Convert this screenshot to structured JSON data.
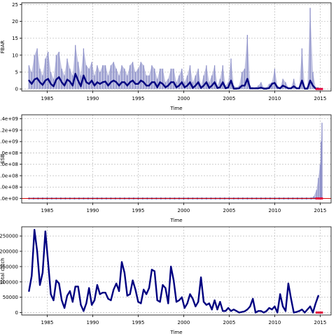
{
  "colors": {
    "band": "#8d8fc8",
    "line": "#000080",
    "projection": "#e0003a",
    "grid": "#bbbbbb",
    "zero_line": "#d40000"
  },
  "chart_data": [
    {
      "type": "area",
      "ylabel": "FBAR",
      "xlabel": "Time",
      "xlim": [
        1982.2,
        2016.2
      ],
      "ylim": [
        -0.6,
        25.5
      ],
      "x_ticks": [
        "1985",
        "1990",
        "1995",
        "2000",
        "2005",
        "2010",
        "2015"
      ],
      "y_ticks": [
        "0",
        "5",
        "10",
        "15",
        "20",
        "25"
      ],
      "grid": true,
      "series": [
        {
          "role": "upper_band",
          "x": [
            1983.0,
            1983.3,
            1983.6,
            1983.9,
            1984.2,
            1984.5,
            1984.8,
            1985.1,
            1985.4,
            1985.7,
            1986.0,
            1986.3,
            1986.6,
            1986.9,
            1987.2,
            1987.5,
            1987.8,
            1988.1,
            1988.4,
            1988.7,
            1989.0,
            1989.3,
            1989.6,
            1989.9,
            1990.2,
            1990.5,
            1990.8,
            1991.1,
            1991.4,
            1991.7,
            1992.0,
            1992.3,
            1992.6,
            1992.9,
            1993.2,
            1993.5,
            1993.8,
            1994.1,
            1994.4,
            1994.7,
            1995.0,
            1995.3,
            1995.6,
            1995.9,
            1996.2,
            1996.5,
            1996.8,
            1997.1,
            1997.4,
            1997.7,
            1998.0,
            1998.3,
            1998.6,
            1998.9,
            1999.2,
            1999.5,
            1999.8,
            2000.1,
            2000.4,
            2000.7,
            2001.0,
            2001.3,
            2001.6,
            2001.9,
            2002.2,
            2002.5,
            2002.8,
            2003.1,
            2003.4,
            2003.7,
            2004.0,
            2004.3,
            2004.6,
            2004.9,
            2005.2,
            2005.5,
            2005.8,
            2006.1,
            2006.4,
            2006.7,
            2007.0,
            2007.3,
            2007.6,
            2007.9,
            2008.2,
            2008.5,
            2008.8,
            2009.1,
            2009.4,
            2009.7,
            2010.0,
            2010.3,
            2010.6,
            2010.9,
            2011.2,
            2011.5,
            2011.8,
            2012.1,
            2012.4,
            2012.7,
            2013.0,
            2013.3,
            2013.6,
            2013.9,
            2014.2,
            2014.5,
            2014.8
          ],
          "values": [
            7,
            5,
            10,
            12,
            6,
            4,
            9,
            11,
            5,
            3,
            10,
            11,
            6,
            4,
            9,
            6,
            4,
            13,
            8,
            4,
            12,
            7,
            6,
            8,
            4,
            7,
            5,
            7,
            7,
            4,
            7,
            8,
            6,
            4,
            7,
            6,
            4,
            7,
            8,
            5,
            6,
            8,
            7,
            4,
            4,
            7,
            6,
            3,
            6,
            6,
            2,
            3,
            6,
            6,
            2,
            4,
            6,
            2,
            4,
            7,
            2,
            4,
            6,
            1,
            4,
            7,
            2,
            4,
            7,
            1,
            3,
            7,
            1,
            2,
            9,
            1,
            0.5,
            1,
            5,
            6,
            16,
            1,
            0.5,
            0.5,
            1,
            2,
            0.5,
            0.5,
            1.5,
            2,
            6,
            1,
            0.5,
            3,
            2,
            0.5,
            0.5,
            3,
            0.5,
            0.5,
            12,
            0.5,
            0.5,
            24,
            5,
            0.5,
            0.5
          ]
        },
        {
          "role": "median",
          "x": [
            1983.0,
            1983.3,
            1983.6,
            1983.9,
            1984.2,
            1984.5,
            1984.8,
            1985.1,
            1985.4,
            1985.7,
            1986.0,
            1986.3,
            1986.6,
            1986.9,
            1987.2,
            1987.5,
            1987.8,
            1988.1,
            1988.4,
            1988.7,
            1989.0,
            1989.3,
            1989.6,
            1989.9,
            1990.2,
            1990.5,
            1990.8,
            1991.1,
            1991.4,
            1991.7,
            1992.0,
            1992.3,
            1992.6,
            1992.9,
            1993.2,
            1993.5,
            1993.8,
            1994.1,
            1994.4,
            1994.7,
            1995.0,
            1995.3,
            1995.6,
            1995.9,
            1996.2,
            1996.5,
            1996.8,
            1997.1,
            1997.4,
            1997.7,
            1998.0,
            1998.3,
            1998.6,
            1998.9,
            1999.2,
            1999.5,
            1999.8,
            2000.1,
            2000.4,
            2000.7,
            2001.0,
            2001.3,
            2001.6,
            2001.9,
            2002.2,
            2002.5,
            2002.8,
            2003.1,
            2003.4,
            2003.7,
            2004.0,
            2004.3,
            2004.6,
            2004.9,
            2005.2,
            2005.5,
            2005.8,
            2006.1,
            2006.4,
            2006.7,
            2007.0,
            2007.3,
            2007.6,
            2007.9,
            2008.2,
            2008.5,
            2008.8,
            2009.1,
            2009.4,
            2009.7,
            2010.0,
            2010.3,
            2010.6,
            2010.9,
            2011.2,
            2011.5,
            2011.8,
            2012.1,
            2012.4,
            2012.7,
            2013.0,
            2013.3,
            2013.6,
            2013.9,
            2014.2,
            2014.5,
            2014.8
          ],
          "values": [
            2.5,
            1.5,
            2.8,
            3.2,
            2,
            1.2,
            2.5,
            3,
            1.5,
            0.8,
            2.8,
            3.5,
            2,
            1,
            2.8,
            2.2,
            1,
            4.5,
            2.5,
            0.8,
            4,
            2,
            1.5,
            2.5,
            1,
            2,
            1.5,
            2,
            2.2,
            1,
            2,
            2.5,
            2,
            1,
            2,
            2,
            1,
            2,
            2.5,
            1.5,
            1.5,
            2.5,
            2,
            1,
            1,
            2,
            2,
            0.5,
            2,
            1.5,
            0.5,
            1,
            2,
            2,
            0.5,
            1,
            2,
            0.5,
            1,
            2,
            0.3,
            1,
            2,
            0.3,
            1,
            2,
            0.3,
            1,
            2,
            0.3,
            0.5,
            2,
            0.2,
            0.5,
            2.5,
            0.1,
            0.1,
            0.2,
            1,
            1,
            3,
            0.2,
            0.2,
            0.2,
            0.2,
            0.4,
            0.1,
            0.1,
            0.3,
            1.5,
            1.8,
            0.4,
            0.2,
            1,
            0.6,
            0.2,
            0.2,
            0.8,
            0.2,
            0.2,
            2.5,
            0.1,
            0.1,
            2.5,
            1,
            0.1,
            0.1
          ]
        },
        {
          "role": "projection",
          "x": [
            2014.6,
            2014.8,
            2015.0,
            2015.2
          ],
          "values": [
            0,
            0,
            0,
            0
          ]
        }
      ]
    },
    {
      "type": "area",
      "ylabel": "SSB",
      "xlabel": "Time",
      "xlim": [
        1982.2,
        2016.2
      ],
      "ylim": [
        -80000000.0,
        1470000000.0
      ],
      "x_ticks": [
        "1985",
        "1990",
        "1995",
        "2000",
        "2005",
        "2010",
        "2015"
      ],
      "y_ticks": [
        ".0e+00",
        ".0e+08",
        ".0e+08",
        ".0e+08",
        ".0e+08",
        ".0e+09",
        ".2e+09",
        ".4e+09"
      ],
      "grid": true,
      "series": [
        {
          "role": "upper_band",
          "x": [
            2014.0,
            2014.3,
            2014.6,
            2014.8,
            2015.0,
            2015.1,
            2015.2
          ],
          "values": [
            0,
            40000000.0,
            150000000.0,
            360000000.0,
            600000000.0,
            1000000000.0,
            1330000000.0
          ]
        },
        {
          "role": "median",
          "x": [
            1983.0,
            2014.8
          ],
          "values": [
            0,
            0
          ]
        },
        {
          "role": "projection",
          "x": [
            2014.6,
            2014.8,
            2015.0,
            2015.2
          ],
          "values": [
            0,
            0,
            0,
            0
          ]
        }
      ]
    },
    {
      "type": "line",
      "ylabel": "total catch",
      "xlabel": "Time",
      "xlim": [
        1982.2,
        2016.2
      ],
      "ylim": [
        -8000,
        280000
      ],
      "x_ticks": [
        "1985",
        "1990",
        "1995",
        "2000",
        "2005",
        "2010",
        "2015"
      ],
      "y_ticks": [
        "0",
        "50000",
        "100000",
        "150000",
        "200000",
        "250000"
      ],
      "grid": true,
      "series": [
        {
          "role": "median",
          "x": [
            1983.0,
            1983.3,
            1983.6,
            1983.9,
            1984.2,
            1984.5,
            1984.8,
            1985.1,
            1985.4,
            1985.7,
            1986.0,
            1986.3,
            1986.6,
            1986.9,
            1987.2,
            1987.5,
            1987.8,
            1988.1,
            1988.4,
            1988.7,
            1989.0,
            1989.3,
            1989.6,
            1989.9,
            1990.2,
            1990.5,
            1990.8,
            1991.1,
            1991.4,
            1991.7,
            1992.0,
            1992.3,
            1992.6,
            1992.9,
            1993.2,
            1993.5,
            1993.8,
            1994.1,
            1994.4,
            1994.7,
            1995.0,
            1995.3,
            1995.6,
            1995.9,
            1996.2,
            1996.5,
            1996.8,
            1997.1,
            1997.4,
            1997.7,
            1998.0,
            1998.3,
            1998.6,
            1998.9,
            1999.2,
            1999.5,
            1999.8,
            2000.1,
            2000.4,
            2000.7,
            2001.0,
            2001.3,
            2001.6,
            2001.9,
            2002.2,
            2002.5,
            2002.8,
            2003.1,
            2003.4,
            2003.7,
            2004.0,
            2004.3,
            2004.6,
            2004.9,
            2005.2,
            2005.5,
            2005.8,
            2006.1,
            2006.4,
            2006.7,
            2007.0,
            2007.3,
            2007.6,
            2007.9,
            2008.2,
            2008.5,
            2008.8,
            2009.1,
            2009.4,
            2009.7,
            2010.0,
            2010.3,
            2010.6,
            2010.9,
            2011.2,
            2011.5,
            2011.8,
            2012.1,
            2012.4,
            2012.7,
            2013.0,
            2013.3,
            2013.6,
            2013.9,
            2014.2,
            2014.5,
            2014.8
          ],
          "values": [
            70000,
            120000,
            270000,
            200000,
            90000,
            130000,
            265000,
            165000,
            60000,
            40000,
            105000,
            95000,
            40000,
            15000,
            55000,
            70000,
            35000,
            85000,
            85000,
            25000,
            5000,
            30000,
            80000,
            25000,
            40000,
            90000,
            60000,
            65000,
            65000,
            45000,
            40000,
            75000,
            95000,
            70000,
            165000,
            130000,
            55000,
            60000,
            105000,
            75000,
            35000,
            30000,
            75000,
            60000,
            80000,
            140000,
            135000,
            40000,
            35000,
            90000,
            80000,
            30000,
            150000,
            105000,
            35000,
            40000,
            50000,
            15000,
            30000,
            60000,
            45000,
            20000,
            35000,
            115000,
            35000,
            25000,
            30000,
            10000,
            40000,
            10000,
            35000,
            5000,
            5000,
            15000,
            5000,
            10000,
            5000,
            0,
            2000,
            4000,
            10000,
            20000,
            45000,
            0,
            5000,
            5000,
            0,
            5000,
            15000,
            10000,
            20000,
            0,
            60000,
            20000,
            5000,
            95000,
            45000,
            0,
            2000,
            5000,
            10000,
            0,
            10000,
            20000,
            0,
            30000,
            55000
          ]
        },
        {
          "role": "projection",
          "x": [
            2014.6,
            2014.8,
            2015.0,
            2015.2
          ],
          "values": [
            0,
            0,
            0,
            0
          ]
        }
      ]
    }
  ]
}
